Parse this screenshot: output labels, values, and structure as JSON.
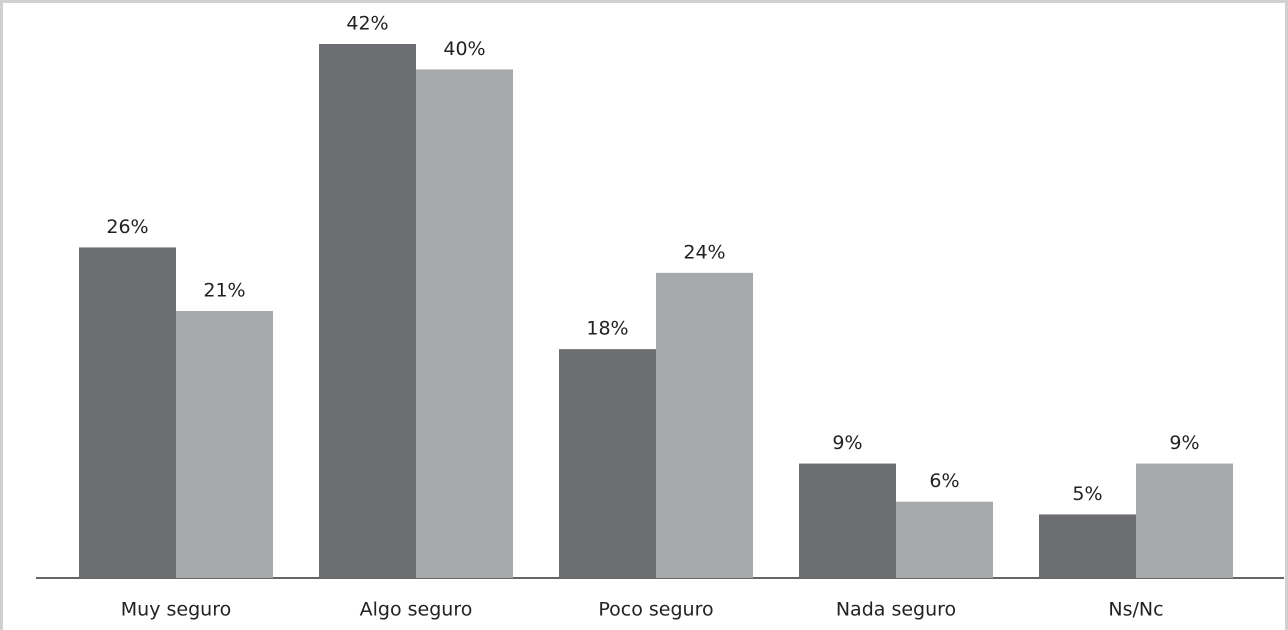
{
  "chart_data": {
    "type": "bar",
    "categories": [
      "Muy seguro",
      "Algo seguro",
      "Poco seguro",
      "Nada seguro",
      "Ns/Nc"
    ],
    "series": [
      {
        "color": "#6d6e71",
        "values": [
          26,
          42,
          18,
          9,
          5
        ],
        "value_labels": [
          "26%",
          "42%",
          "18%",
          "9%",
          "5%"
        ]
      },
      {
        "color": "#a7a9ac",
        "values": [
          21,
          40,
          24,
          6,
          9
        ],
        "value_labels": [
          "21%",
          "40%",
          "24%",
          "6%",
          "9%"
        ]
      }
    ],
    "ylim": [
      0,
      42
    ]
  }
}
